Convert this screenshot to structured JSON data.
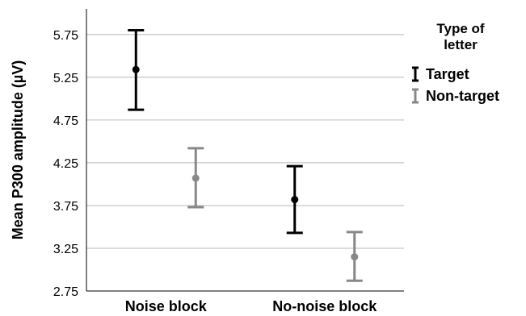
{
  "chart_data": {
    "type": "errorbar",
    "title": "",
    "ylabel": "Mean P300 amplitude (µV)",
    "xlabel": "",
    "ylim": [
      2.75,
      6.05
    ],
    "yticks": [
      "2.75",
      "3.25",
      "3.75",
      "4.25",
      "4.75",
      "5.25",
      "5.75"
    ],
    "grid": "horizontal",
    "categories": [
      "Noise block",
      "No-noise block"
    ],
    "legend": {
      "title_lines": [
        "Type of",
        "letter"
      ],
      "placement": "right"
    },
    "series": [
      {
        "name": "Target",
        "color": "#000000",
        "values": [
          5.34,
          3.82
        ],
        "lower": [
          4.87,
          3.43
        ],
        "upper": [
          5.8,
          4.21
        ]
      },
      {
        "name": "Non-target",
        "color": "#888888",
        "values": [
          4.07,
          3.15
        ],
        "lower": [
          3.73,
          2.87
        ],
        "upper": [
          4.42,
          3.44
        ]
      }
    ]
  }
}
